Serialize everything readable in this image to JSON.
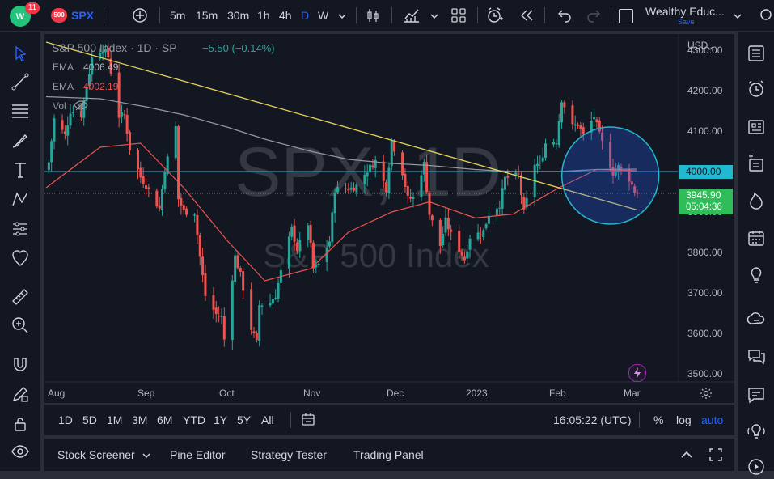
{
  "toolbar": {
    "notification_count": "11",
    "symbol_badge": "500",
    "symbol": "SPX",
    "intervals": [
      "5m",
      "15m",
      "30m",
      "1h",
      "4h",
      "D",
      "W"
    ],
    "active_interval": "D",
    "account_name": "Wealthy Educ...",
    "save_label": "Save"
  },
  "legend": {
    "title": "S&P 500 Index · 1D · SP",
    "change": "−5.50 (−0.14%)",
    "ema1_label": "EMA",
    "ema1_value": "4006.49",
    "ema2_label": "EMA",
    "ema2_value": "4002.19",
    "vol_label": "Vol"
  },
  "watermark": {
    "symbol_line": "SPX, 1D",
    "name_line": "S&P 500 Index"
  },
  "price_axis": {
    "currency": "USD",
    "ticks": [
      "4300.00",
      "4200.00",
      "4100.00",
      "4000.00",
      "3900.00",
      "3800.00",
      "3700.00",
      "3600.00",
      "3500.00"
    ],
    "tick_values": [
      4300,
      4200,
      4100,
      4000,
      3900,
      3800,
      3700,
      3600,
      3500
    ],
    "horizontal_line_label": "4000.00",
    "horizontal_line_value": 4000,
    "last_price_label": "3945.90",
    "last_price_value": 3945.9,
    "countdown": "05:04:36"
  },
  "time_axis": {
    "labels": [
      "Aug",
      "Sep",
      "Oct",
      "Nov",
      "Dec",
      "2023",
      "Feb",
      "Mar"
    ]
  },
  "colors": {
    "up": "#26a69a",
    "down": "#ef5350",
    "ema_fast": "#ef5350",
    "ema_slow": "#9598a1",
    "trendline": "#e6d35a",
    "hline": "#22b8cf",
    "last_price_bg": "#2ebd59",
    "accent": "#2962ff"
  },
  "chart_data": {
    "type": "candlestick",
    "y_range": [
      3480,
      4340
    ],
    "x_range": [
      "2022-07-26",
      "2023-03-02"
    ],
    "horizontal_line": 4000,
    "trendline": {
      "from": [
        "2022-07-26",
        4320
      ],
      "to": [
        "2023-03-02",
        3905
      ]
    },
    "highlight_circle": {
      "center": [
        "2023-02-20",
        3990
      ],
      "radius_price": 120
    },
    "series": [
      {
        "name": "EMA",
        "color": "#ef5350",
        "points": [
          [
            "2022-07-26",
            3960
          ],
          [
            "2022-08-15",
            4060
          ],
          [
            "2022-08-30",
            4070
          ],
          [
            "2022-09-15",
            3960
          ],
          [
            "2022-10-01",
            3830
          ],
          [
            "2022-10-15",
            3730
          ],
          [
            "2022-11-01",
            3760
          ],
          [
            "2022-11-15",
            3850
          ],
          [
            "2022-12-01",
            3900
          ],
          [
            "2022-12-15",
            3925
          ],
          [
            "2023-01-01",
            3885
          ],
          [
            "2023-01-15",
            3895
          ],
          [
            "2023-02-01",
            3960
          ],
          [
            "2023-02-15",
            4005
          ],
          [
            "2023-03-02",
            4002
          ]
        ]
      },
      {
        "name": "EMA",
        "color": "#9598a1",
        "points": [
          [
            "2022-07-26",
            4185
          ],
          [
            "2022-08-15",
            4180
          ],
          [
            "2022-09-01",
            4160
          ],
          [
            "2022-09-15",
            4140
          ],
          [
            "2022-10-01",
            4110
          ],
          [
            "2022-10-15",
            4080
          ],
          [
            "2022-11-01",
            4050
          ],
          [
            "2022-11-15",
            4030
          ],
          [
            "2022-12-01",
            4020
          ],
          [
            "2022-12-15",
            4015
          ],
          [
            "2023-01-01",
            4005
          ],
          [
            "2023-01-15",
            4000
          ],
          [
            "2023-02-01",
            4000
          ],
          [
            "2023-02-15",
            4005
          ],
          [
            "2023-03-02",
            4006
          ]
        ]
      }
    ],
    "closes": [
      [
        "2022-07-27",
        4023
      ],
      [
        "2022-07-29",
        4130
      ],
      [
        "2022-08-02",
        4090
      ],
      [
        "2022-08-04",
        4150
      ],
      [
        "2022-08-08",
        4140
      ],
      [
        "2022-08-10",
        4210
      ],
      [
        "2022-08-12",
        4280
      ],
      [
        "2022-08-16",
        4305
      ],
      [
        "2022-08-18",
        4283
      ],
      [
        "2022-08-22",
        4137
      ],
      [
        "2022-08-24",
        4140
      ],
      [
        "2022-08-26",
        4057
      ],
      [
        "2022-08-30",
        3986
      ],
      [
        "2022-09-01",
        3966
      ],
      [
        "2022-09-06",
        3908
      ],
      [
        "2022-09-08",
        4006
      ],
      [
        "2022-09-12",
        4110
      ],
      [
        "2022-09-13",
        3932
      ],
      [
        "2022-09-15",
        3901
      ],
      [
        "2022-09-19",
        3899
      ],
      [
        "2022-09-21",
        3789
      ],
      [
        "2022-09-23",
        3693
      ],
      [
        "2022-09-27",
        3647
      ],
      [
        "2022-09-29",
        3640
      ],
      [
        "2022-09-30",
        3585
      ],
      [
        "2022-10-04",
        3790
      ],
      [
        "2022-10-06",
        3744
      ],
      [
        "2022-10-10",
        3612
      ],
      [
        "2022-10-12",
        3577
      ],
      [
        "2022-10-13",
        3670
      ],
      [
        "2022-10-17",
        3677
      ],
      [
        "2022-10-19",
        3695
      ],
      [
        "2022-10-21",
        3752
      ],
      [
        "2022-10-25",
        3859
      ],
      [
        "2022-10-27",
        3807
      ],
      [
        "2022-10-31",
        3871
      ],
      [
        "2022-11-02",
        3760
      ],
      [
        "2022-11-04",
        3770
      ],
      [
        "2022-11-08",
        3828
      ],
      [
        "2022-11-10",
        3956
      ],
      [
        "2022-11-14",
        3957
      ],
      [
        "2022-11-16",
        3959
      ],
      [
        "2022-11-18",
        3965
      ],
      [
        "2022-11-22",
        4003
      ],
      [
        "2022-11-25",
        4026
      ],
      [
        "2022-11-29",
        3958
      ],
      [
        "2022-12-01",
        4076
      ],
      [
        "2022-12-05",
        3998
      ],
      [
        "2022-12-07",
        3933
      ],
      [
        "2022-12-09",
        3934
      ],
      [
        "2022-12-13",
        4019
      ],
      [
        "2022-12-15",
        3895
      ],
      [
        "2022-12-19",
        3817
      ],
      [
        "2022-12-21",
        3878
      ],
      [
        "2022-12-23",
        3844
      ],
      [
        "2022-12-28",
        3783
      ],
      [
        "2022-12-30",
        3839
      ],
      [
        "2023-01-04",
        3852
      ],
      [
        "2023-01-06",
        3895
      ],
      [
        "2023-01-10",
        3919
      ],
      [
        "2023-01-12",
        3983
      ],
      [
        "2023-01-17",
        3990
      ],
      [
        "2023-01-19",
        3898
      ],
      [
        "2023-01-23",
        4019
      ],
      [
        "2023-01-25",
        4016
      ],
      [
        "2023-01-27",
        4070
      ],
      [
        "2023-01-31",
        4076
      ],
      [
        "2023-02-02",
        4179
      ],
      [
        "2023-02-06",
        4111
      ],
      [
        "2023-02-08",
        4117
      ],
      [
        "2023-02-10",
        4090
      ],
      [
        "2023-02-14",
        4136
      ],
      [
        "2023-02-16",
        4090
      ],
      [
        "2023-02-21",
        3997
      ],
      [
        "2023-02-23",
        4012
      ],
      [
        "2023-02-27",
        3982
      ],
      [
        "2023-03-01",
        3951
      ],
      [
        "2023-03-02",
        3946
      ]
    ]
  },
  "bottom_bar": {
    "ranges": [
      "1D",
      "5D",
      "1M",
      "3M",
      "6M",
      "YTD",
      "1Y",
      "5Y",
      "All"
    ],
    "clock": "16:05:22 (UTC)",
    "percent_label": "%",
    "log_label": "log",
    "auto_label": "auto"
  },
  "panel_tabs": {
    "tabs": [
      "Stock Screener",
      "Pine Editor",
      "Strategy Tester",
      "Trading Panel"
    ]
  }
}
